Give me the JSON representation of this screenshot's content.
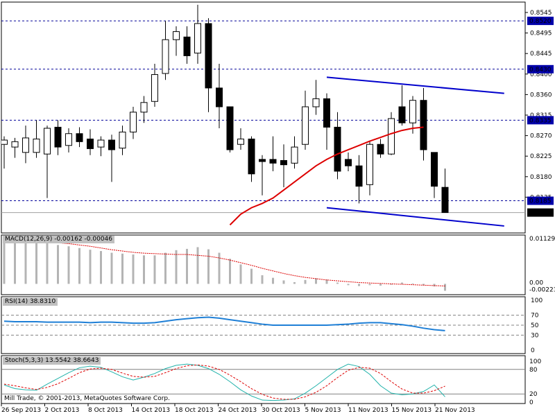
{
  "copyright": "Mill Trade, © 2001-2013, MetaQuotes Software Corp.",
  "colors": {
    "bull": "#ffffff",
    "bear": "#000000",
    "channel": "#0000cc",
    "ma": "#dd0000",
    "level": "#000099",
    "levelBox": "#0000aa",
    "rsi": "#1e7fd6",
    "stoch_main": "#20b2aa",
    "stoch_signal": "#dd0000",
    "hist": "#b4b4b4",
    "grid": "#000000"
  },
  "chart_data": [
    {
      "type": "candlestick",
      "title": "",
      "ylim": [
        0.8125,
        0.8555
      ],
      "price_ticks": [
        "0.8545",
        "0.8495",
        "0.8445",
        "0.8400",
        "0.8360",
        "0.8315",
        "0.8270",
        "0.8225",
        "0.8180",
        "0.8135"
      ],
      "x_tick_labels": [
        "26 Sep 2013",
        "2 Oct 2013",
        "8 Oct 2013",
        "14 Oct 2013",
        "18 Oct 2013",
        "24 Oct 2013",
        "30 Oct 2013",
        "5 Nov 2013",
        "11 Nov 2013",
        "15 Nov 2013",
        "21 Nov 2013"
      ],
      "levels": [
        {
          "label": "0.8520",
          "value": 0.852
        },
        {
          "label": "0.8430",
          "value": 0.843
        },
        {
          "label": "0.8335",
          "value": 0.8335
        },
        {
          "label": "0.8185",
          "value": 0.8185
        }
      ],
      "current_price": {
        "label": "0.8163",
        "value": 0.8163
      },
      "candles": [
        {
          "o": 0.829,
          "h": 0.8305,
          "l": 0.8245,
          "c": 0.8298
        },
        {
          "o": 0.8285,
          "h": 0.8302,
          "l": 0.8265,
          "c": 0.8295
        },
        {
          "o": 0.8275,
          "h": 0.8325,
          "l": 0.8255,
          "c": 0.8302
        },
        {
          "o": 0.8275,
          "h": 0.8335,
          "l": 0.8265,
          "c": 0.83
        },
        {
          "o": 0.8272,
          "h": 0.8325,
          "l": 0.819,
          "c": 0.832
        },
        {
          "o": 0.8322,
          "h": 0.8335,
          "l": 0.827,
          "c": 0.8285
        },
        {
          "o": 0.8288,
          "h": 0.832,
          "l": 0.8275,
          "c": 0.831
        },
        {
          "o": 0.831,
          "h": 0.8322,
          "l": 0.8285,
          "c": 0.8295
        },
        {
          "o": 0.83,
          "h": 0.8318,
          "l": 0.827,
          "c": 0.8282
        },
        {
          "o": 0.8285,
          "h": 0.8305,
          "l": 0.8268,
          "c": 0.8298
        },
        {
          "o": 0.8298,
          "h": 0.8308,
          "l": 0.822,
          "c": 0.828
        },
        {
          "o": 0.8283,
          "h": 0.8325,
          "l": 0.827,
          "c": 0.8313
        },
        {
          "o": 0.8313,
          "h": 0.836,
          "l": 0.83,
          "c": 0.835
        },
        {
          "o": 0.835,
          "h": 0.838,
          "l": 0.833,
          "c": 0.8368
        },
        {
          "o": 0.837,
          "h": 0.844,
          "l": 0.836,
          "c": 0.842
        },
        {
          "o": 0.8422,
          "h": 0.852,
          "l": 0.841,
          "c": 0.8485
        },
        {
          "o": 0.8485,
          "h": 0.851,
          "l": 0.8455,
          "c": 0.85
        },
        {
          "o": 0.849,
          "h": 0.851,
          "l": 0.844,
          "c": 0.8455
        },
        {
          "o": 0.846,
          "h": 0.855,
          "l": 0.844,
          "c": 0.8515
        },
        {
          "o": 0.8515,
          "h": 0.8525,
          "l": 0.835,
          "c": 0.8395
        },
        {
          "o": 0.8395,
          "h": 0.844,
          "l": 0.832,
          "c": 0.836
        },
        {
          "o": 0.836,
          "h": 0.836,
          "l": 0.8275,
          "c": 0.828
        },
        {
          "o": 0.829,
          "h": 0.832,
          "l": 0.828,
          "c": 0.83
        },
        {
          "o": 0.83,
          "h": 0.8305,
          "l": 0.822,
          "c": 0.8235
        },
        {
          "o": 0.8262,
          "h": 0.827,
          "l": 0.8195,
          "c": 0.8258
        },
        {
          "o": 0.8262,
          "h": 0.8305,
          "l": 0.824,
          "c": 0.8255
        },
        {
          "o": 0.826,
          "h": 0.829,
          "l": 0.821,
          "c": 0.8252
        },
        {
          "o": 0.8255,
          "h": 0.8305,
          "l": 0.8245,
          "c": 0.8285
        },
        {
          "o": 0.829,
          "h": 0.839,
          "l": 0.828,
          "c": 0.836
        },
        {
          "o": 0.836,
          "h": 0.841,
          "l": 0.8345,
          "c": 0.8375
        },
        {
          "o": 0.8375,
          "h": 0.8385,
          "l": 0.828,
          "c": 0.8322
        },
        {
          "o": 0.8322,
          "h": 0.835,
          "l": 0.8225,
          "c": 0.824
        },
        {
          "o": 0.8262,
          "h": 0.8275,
          "l": 0.824,
          "c": 0.825
        },
        {
          "o": 0.825,
          "h": 0.827,
          "l": 0.818,
          "c": 0.8212
        },
        {
          "o": 0.8215,
          "h": 0.8295,
          "l": 0.8195,
          "c": 0.829
        },
        {
          "o": 0.829,
          "h": 0.83,
          "l": 0.8265,
          "c": 0.8272
        },
        {
          "o": 0.8272,
          "h": 0.835,
          "l": 0.827,
          "c": 0.8338
        },
        {
          "o": 0.836,
          "h": 0.84,
          "l": 0.8325,
          "c": 0.833
        },
        {
          "o": 0.833,
          "h": 0.838,
          "l": 0.831,
          "c": 0.8372
        },
        {
          "o": 0.8372,
          "h": 0.8395,
          "l": 0.826,
          "c": 0.828
        },
        {
          "o": 0.8275,
          "h": 0.8275,
          "l": 0.819,
          "c": 0.8212
        },
        {
          "o": 0.821,
          "h": 0.8245,
          "l": 0.8163,
          "c": 0.8163
        }
      ],
      "ma": [
        {
          "i": 21,
          "v": 0.814
        },
        {
          "i": 22,
          "v": 0.816
        },
        {
          "i": 23,
          "v": 0.8172
        },
        {
          "i": 24,
          "v": 0.818
        },
        {
          "i": 25,
          "v": 0.819
        },
        {
          "i": 26,
          "v": 0.8205
        },
        {
          "i": 27,
          "v": 0.822
        },
        {
          "i": 28,
          "v": 0.8235
        },
        {
          "i": 29,
          "v": 0.825
        },
        {
          "i": 30,
          "v": 0.8262
        },
        {
          "i": 31,
          "v": 0.8272
        },
        {
          "i": 32,
          "v": 0.828
        },
        {
          "i": 33,
          "v": 0.8288
        },
        {
          "i": 34,
          "v": 0.8296
        },
        {
          "i": 35,
          "v": 0.8303
        },
        {
          "i": 36,
          "v": 0.831
        },
        {
          "i": 37,
          "v": 0.8316
        },
        {
          "i": 38,
          "v": 0.832
        },
        {
          "i": 39,
          "v": 0.8322
        }
      ],
      "channel_upper": {
        "from": {
          "i": 30,
          "v": 0.8415
        },
        "to": {
          "i": 46.5,
          "v": 0.8385
        }
      },
      "channel_lower": {
        "from": {
          "i": 30,
          "v": 0.8172
        },
        "to": {
          "i": 46.5,
          "v": 0.8138
        }
      }
    },
    {
      "type": "bar",
      "name": "MACD(12,26,9) -0.00162 -0.00046",
      "ylim": [
        -0.0025,
        0.0113
      ],
      "tick_labels": {
        "top": "0.01129",
        "zero": "0.00",
        "bottom": "-0.00223"
      },
      "values": [
        0.0098,
        0.0097,
        0.0097,
        0.0098,
        0.0095,
        0.009,
        0.0087,
        0.0083,
        0.0079,
        0.0076,
        0.0072,
        0.007,
        0.0068,
        0.0066,
        0.0066,
        0.0072,
        0.0078,
        0.0081,
        0.0085,
        0.008,
        0.0072,
        0.0058,
        0.0045,
        0.0035,
        0.002,
        0.0014,
        0.0008,
        0.0004,
        0.0009,
        0.0013,
        0.001,
        0.0003,
        -0.0003,
        -0.0005,
        -0.0003,
        -0.0004,
        -0.0002,
        0.0003,
        0.0001,
        -0.0003,
        -0.0006,
        -0.0016
      ],
      "signal": [
        0.0105,
        0.0104,
        0.0102,
        0.01,
        0.0097,
        0.0095,
        0.0093,
        0.009,
        0.0087,
        0.0083,
        0.0079,
        0.0076,
        0.0073,
        0.0071,
        0.007,
        0.0069,
        0.0068,
        0.0068,
        0.0066,
        0.0064,
        0.006,
        0.0055,
        0.0049,
        0.0043,
        0.0036,
        0.003,
        0.0024,
        0.0019,
        0.0015,
        0.0012,
        0.0009,
        0.0007,
        0.0005,
        0.0003,
        0.0002,
        0.0001,
        0.0,
        -0.0001,
        -0.0002,
        -0.0003,
        -0.0004,
        -0.0005
      ]
    },
    {
      "type": "line",
      "name": "RSI(14) 38.8310",
      "ylim": [
        0,
        100
      ],
      "tick_labels": [
        "100",
        "70",
        "50",
        "30",
        "0"
      ],
      "levels": [
        70,
        50,
        30
      ],
      "values": [
        58,
        57,
        57,
        57,
        56,
        56,
        56,
        56,
        55,
        56,
        56,
        55,
        54,
        54,
        55,
        58,
        61,
        63,
        65,
        66,
        64,
        61,
        58,
        55,
        52,
        50,
        50,
        50,
        50,
        50,
        50,
        51,
        52,
        54,
        55,
        55,
        53,
        51,
        48,
        44,
        41,
        39
      ]
    },
    {
      "type": "line",
      "name": "Stoch(5,3,3) 13.5542 38.6643",
      "ylim": [
        0,
        100
      ],
      "tick_labels": [
        "100",
        "80",
        "20",
        "0"
      ],
      "levels": [
        80,
        20
      ],
      "main": [
        42,
        33,
        30,
        29,
        44,
        58,
        72,
        84,
        88,
        85,
        74,
        62,
        54,
        61,
        70,
        82,
        90,
        93,
        90,
        82,
        68,
        50,
        30,
        15,
        5,
        4,
        5,
        8,
        22,
        40,
        60,
        80,
        93,
        87,
        68,
        40,
        22,
        18,
        20,
        26,
        42,
        13
      ],
      "signal": [
        44,
        40,
        35,
        31,
        36,
        45,
        58,
        72,
        81,
        83,
        80,
        71,
        63,
        61,
        63,
        72,
        82,
        89,
        91,
        88,
        80,
        66,
        50,
        33,
        19,
        10,
        7,
        7,
        13,
        24,
        40,
        60,
        78,
        85,
        83,
        70,
        50,
        32,
        22,
        22,
        28,
        39
      ]
    }
  ]
}
